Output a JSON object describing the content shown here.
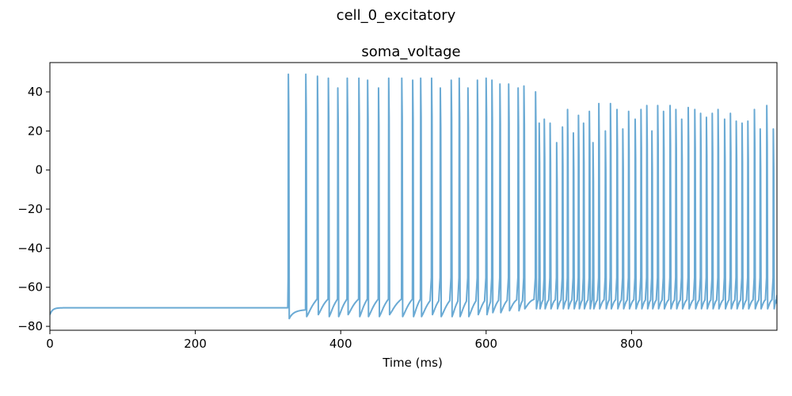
{
  "figure": {
    "suptitle": "cell_0_excitatory"
  },
  "chart_data": {
    "type": "line",
    "title": "soma_voltage",
    "xlabel": "Time (ms)",
    "ylabel": "",
    "xlim": [
      0,
      1000
    ],
    "ylim": [
      -82,
      55
    ],
    "x_ticks": [
      0,
      200,
      400,
      600,
      800
    ],
    "y_ticks": [
      40,
      20,
      0,
      -20,
      -40,
      -60,
      -80
    ],
    "grid": false,
    "legend": "none",
    "series": [
      {
        "color": "#6aaad4",
        "resting_potential": -70.5,
        "initial_value": -74,
        "spike_times": [
          328,
          352,
          368,
          383,
          396,
          409,
          425,
          437,
          452,
          466,
          484,
          499,
          510,
          525,
          537,
          552,
          563,
          575,
          588,
          600,
          608,
          619,
          631,
          644,
          652,
          668,
          673,
          680,
          688,
          697,
          705,
          712,
          720,
          727,
          734,
          742,
          747,
          755,
          764,
          771,
          780,
          788,
          796,
          805,
          813,
          821,
          828,
          836,
          844,
          853,
          861,
          869,
          878,
          887,
          895,
          903,
          911,
          919,
          928,
          936,
          944,
          952,
          960,
          969,
          977,
          986,
          995
        ],
        "spike_peaks": [
          49,
          49,
          48,
          47,
          42,
          47,
          47,
          46,
          42,
          47,
          47,
          46,
          47,
          47,
          42,
          46,
          47,
          42,
          46,
          47,
          46,
          44,
          44,
          42,
          43,
          40,
          24,
          26,
          24,
          14,
          22,
          31,
          19,
          28,
          24,
          30,
          14,
          34,
          20,
          34,
          31,
          21,
          30,
          26,
          31,
          33,
          20,
          33,
          30,
          33,
          31,
          26,
          32,
          31,
          29,
          27,
          29,
          31,
          26,
          29,
          25,
          24,
          25,
          31,
          21,
          33,
          21
        ],
        "after_hyperpolarization_troughs": [
          -76,
          -75,
          -74,
          -75,
          -75,
          -74,
          -75,
          -75,
          -75,
          -74,
          -75,
          -75,
          -75,
          -74,
          -75,
          -75,
          -75,
          -75,
          -74,
          -74,
          -73,
          -73,
          -72,
          -72,
          -71,
          -71,
          -71,
          -71,
          -71,
          -71,
          -71,
          -71,
          -71,
          -71,
          -71,
          -71,
          -71,
          -71,
          -71,
          -71,
          -71,
          -71,
          -71,
          -71,
          -71,
          -71,
          -71,
          -71,
          -71,
          -71,
          -71,
          -71,
          -71,
          -71,
          -71,
          -71,
          -71,
          -71,
          -71,
          -71,
          -71,
          -71,
          -71,
          -71,
          -71,
          -71,
          -71
        ],
        "end_value": -64
      }
    ]
  }
}
